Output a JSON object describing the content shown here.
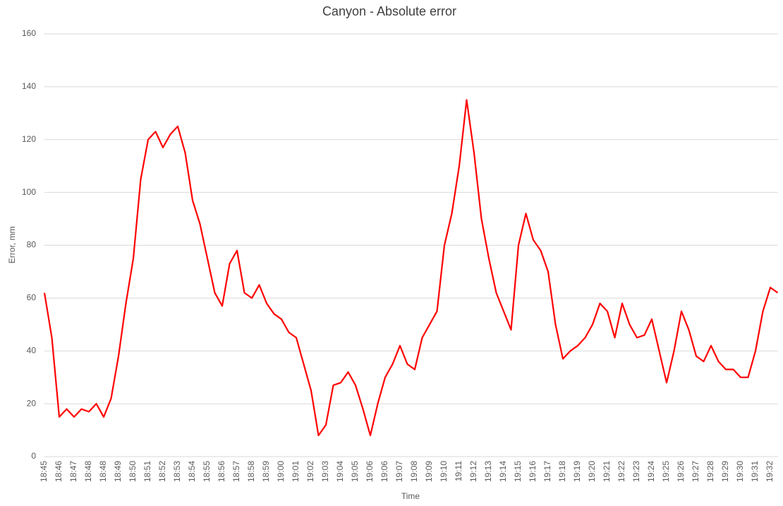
{
  "chart_data": {
    "type": "line",
    "title": "Canyon - Absolute error",
    "x_label": "Time",
    "y_label": "Error, mm",
    "categories": [
      "18:45",
      null,
      "18:46",
      null,
      "18:47",
      null,
      "18:48",
      null,
      "18:48",
      null,
      "18:49",
      null,
      "18:50",
      null,
      "18:51",
      null,
      "18:52",
      null,
      "18:53",
      null,
      "18:54",
      null,
      "18:55",
      null,
      "18:56",
      null,
      "18:57",
      null,
      "18:58",
      null,
      "18:59",
      null,
      "19:00",
      null,
      "19:01",
      null,
      "19:02",
      null,
      "19:03",
      null,
      "19:04",
      null,
      "19:05",
      null,
      "19:06",
      null,
      "19:06",
      null,
      "19:07",
      null,
      "19:08",
      null,
      "19:09",
      null,
      "19:10",
      null,
      "19:11",
      null,
      "19:12",
      null,
      "19:13",
      null,
      "19:14",
      null,
      "19:15",
      null,
      "19:16",
      null,
      "19:17",
      null,
      "19:18",
      null,
      "19:19",
      null,
      "19:20",
      null,
      "19:21",
      null,
      "19:22",
      null,
      "19:23",
      null,
      "19:24",
      null,
      "19:25",
      null,
      "19:26",
      null,
      "19:27",
      null,
      "19:28",
      null,
      "19:29",
      null,
      "19:30",
      null,
      "19:31",
      null,
      "19:32",
      null
    ],
    "values": [
      62,
      45,
      15,
      18,
      15,
      18,
      17,
      20,
      15,
      22,
      38,
      58,
      75,
      105,
      120,
      123,
      117,
      122,
      125,
      115,
      97,
      88,
      75,
      62,
      57,
      73,
      78,
      62,
      60,
      65,
      58,
      54,
      52,
      47,
      45,
      35,
      25,
      8,
      12,
      27,
      28,
      32,
      27,
      18,
      8,
      20,
      30,
      35,
      42,
      35,
      33,
      45,
      50,
      55,
      80,
      92,
      110,
      135,
      115,
      90,
      75,
      62,
      55,
      48,
      80,
      92,
      82,
      78,
      70,
      50,
      37,
      40,
      42,
      45,
      50,
      58,
      55,
      45,
      58,
      50,
      45,
      46,
      52,
      40,
      28,
      40,
      55,
      48,
      38,
      36,
      42,
      36,
      33,
      33,
      30,
      30,
      40,
      55,
      64,
      62
    ],
    "color": "#ff0000",
    "ylim": [
      0,
      160
    ],
    "yticks": [
      0,
      20,
      40,
      60,
      80,
      100,
      120,
      140,
      160
    ],
    "grid": true
  }
}
